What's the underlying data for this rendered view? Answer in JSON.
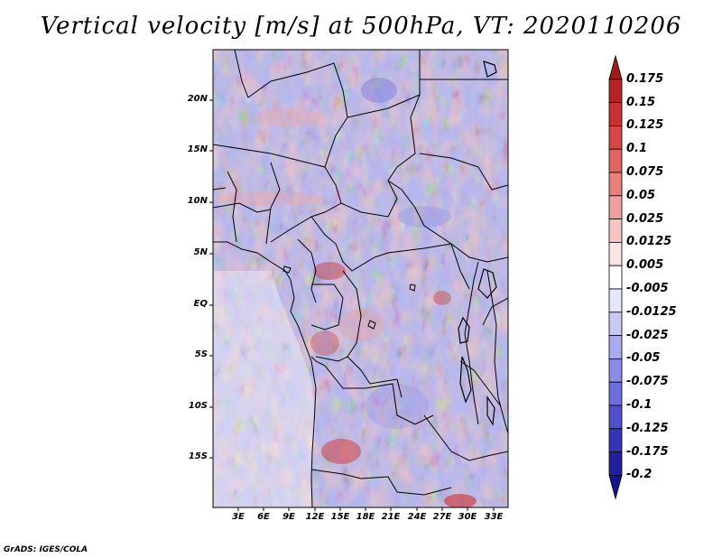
{
  "title": "Vertical velocity [m/s] at 500hPa, VT: 2020110206",
  "map": {
    "lat_labels": [
      "20N",
      "15N",
      "10N",
      "5N",
      "EQ",
      "5S",
      "10S",
      "15S"
    ],
    "lon_labels": [
      "3E",
      "6E",
      "9E",
      "12E",
      "15E",
      "18E",
      "21E",
      "24E",
      "27E",
      "30E",
      "33E"
    ]
  },
  "colorbar": {
    "labels": [
      "0.175",
      "0.15",
      "0.125",
      "0.1",
      "0.075",
      "0.05",
      "0.025",
      "0.0125",
      "0.005",
      "-0.005",
      "-0.0125",
      "-0.025",
      "-0.05",
      "-0.075",
      "-0.1",
      "-0.125",
      "-0.175",
      "-0.2"
    ],
    "colors": [
      "#a01818",
      "#b42424",
      "#c83232",
      "#d84646",
      "#e06464",
      "#e88080",
      "#f0a0a0",
      "#f6c4c4",
      "#fbe4e4",
      "#ffffff",
      "#e6e6fb",
      "#c8c8f4",
      "#aaaaee",
      "#8c8ce6",
      "#6e6ede",
      "#5050cc",
      "#3434b4",
      "#20209c",
      "#14148c"
    ]
  },
  "footer": "GrADS: IGES/COLA"
}
